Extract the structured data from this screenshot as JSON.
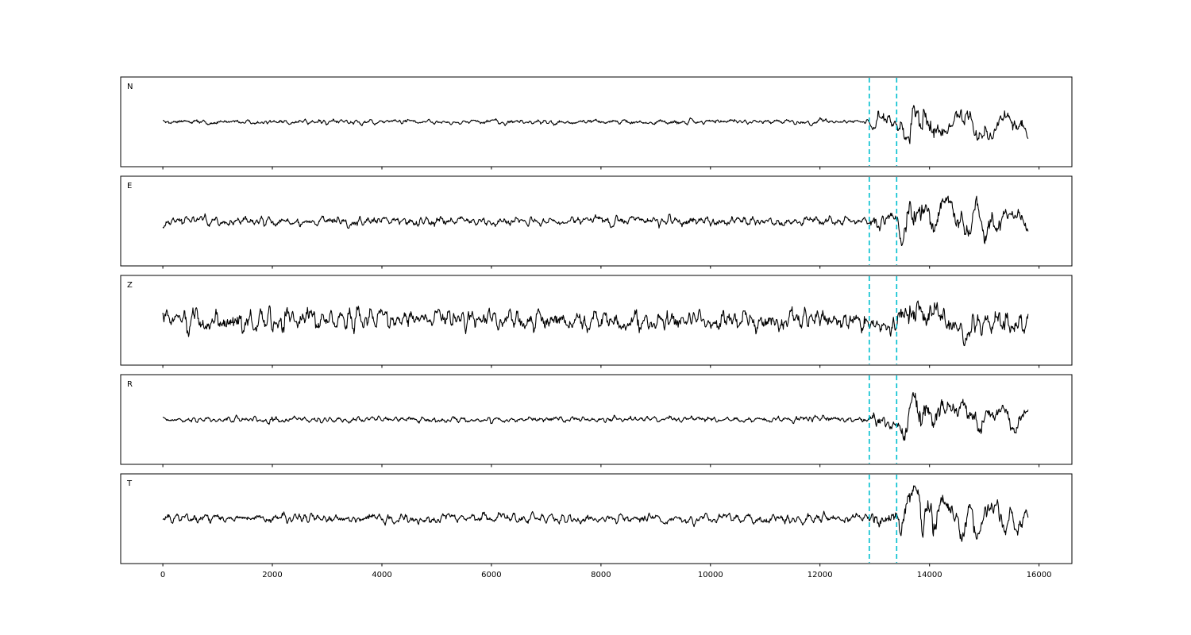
{
  "figure": {
    "background": "#ffffff",
    "trace_color": "#000000",
    "border_color": "#000000",
    "tick_label_color": "#000000"
  },
  "chart_data": {
    "type": "line",
    "title": "",
    "xlabel": "",
    "ylabel": "",
    "description": "Five stacked seismogram component traces (N, E, Z, R, T) with two cyan dashed phase-pick lines",
    "x_ticks": [
      0,
      2000,
      4000,
      6000,
      8000,
      10000,
      12000,
      14000,
      16000
    ],
    "xlim": [
      -770,
      16600
    ],
    "x_range_data": [
      0,
      15800
    ],
    "sample_step": 10,
    "grid": false,
    "legend": "none",
    "line_color": "#000000",
    "pick_lines": {
      "positions": [
        12900,
        13400
      ],
      "color": "#00bfcf",
      "style": "dashed"
    },
    "events": {
      "p_onset": 12900,
      "s_onset": 13400,
      "rise": 120,
      "p_decay": 900,
      "s_decay": 4000,
      "burst_decay": 1000
    },
    "panels": [
      {
        "label": "N",
        "noise_sigma": 1.5,
        "p_sigma": 12,
        "s_sigma": 16,
        "burst_sigma": 0,
        "burst_onset": 0,
        "seed": 11
      },
      {
        "label": "E",
        "noise_sigma": 3.0,
        "p_sigma": 12,
        "s_sigma": 16,
        "burst_sigma": 0,
        "burst_onset": 0,
        "seed": 22
      },
      {
        "label": "Z",
        "noise_sigma": 6.5,
        "p_sigma": 9,
        "s_sigma": 12,
        "burst_sigma": 9,
        "burst_onset": 350,
        "seed": 33
      },
      {
        "label": "R",
        "noise_sigma": 1.8,
        "p_sigma": 12,
        "s_sigma": 16,
        "burst_sigma": 0,
        "burst_onset": 0,
        "seed": 44
      },
      {
        "label": "T",
        "noise_sigma": 3.0,
        "p_sigma": 12,
        "s_sigma": 17,
        "burst_sigma": 0,
        "burst_onset": 0,
        "seed": 55
      }
    ]
  }
}
